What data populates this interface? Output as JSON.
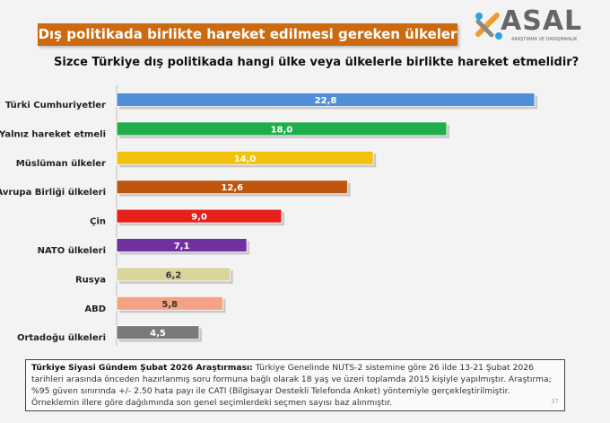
{
  "banner_title": "Dış politikada birlikte hareket edilmesi gereken ülkeler",
  "logo": {
    "text": "ASAL",
    "subtitle": "ARAŞTIRMA VE DANIŞMANLIK"
  },
  "chart_data": {
    "type": "bar",
    "orientation": "horizontal",
    "title": "Sizce Türkiye dış politikada hangi ülke veya ülkelerle birlikte hareket etmelidir?",
    "categories": [
      "Türki Cumhuriyetler",
      "Yalnız hareket etmeli",
      "Müslüman ülkeler",
      "Avrupa Birliği ülkeleri",
      "Çin",
      "NATO ülkeleri",
      "Rusya",
      "ABD",
      "Ortadoğu ülkeleri"
    ],
    "values": [
      22.8,
      18.0,
      14.0,
      12.6,
      9.0,
      7.1,
      6.2,
      5.8,
      4.5
    ],
    "data_labels": [
      "22,8",
      "18,0",
      "14,0",
      "12,6",
      "9,0",
      "7,1",
      "6,2",
      "5,8",
      "4,5"
    ],
    "colors": [
      "#4f8fd8",
      "#1fae4a",
      "#f3c20c",
      "#c0560e",
      "#e8201c",
      "#7030a0",
      "#d9d59c",
      "#f4a184",
      "#7a7a7a"
    ],
    "xlim": [
      0,
      22.8
    ],
    "grid": false,
    "legend": "none"
  },
  "note": {
    "bold": "Türkiye Siyasi Gündem Şubat 2026 Araştırması:",
    "text": " Türkiye Genelinde NUTS-2 sistemine göre 26 ilde 13-21 Şubat 2026 tarihleri arasında önceden hazırlanmış soru formuna bağlı olarak 18 yaş ve üzeri toplamda 2015 kişiyle yapılmıştır. Araştırma; %95 güven sınırında +/- 2.50 hata payı ile CATI (Bilgisayar Destekli Telefonda Anket) yöntemiyle gerçekleştirilmiştir. Örneklemin illere göre dağılımında son genel seçimlerdeki seçmen sayısı baz alınmıştır.",
    "page": "37"
  }
}
